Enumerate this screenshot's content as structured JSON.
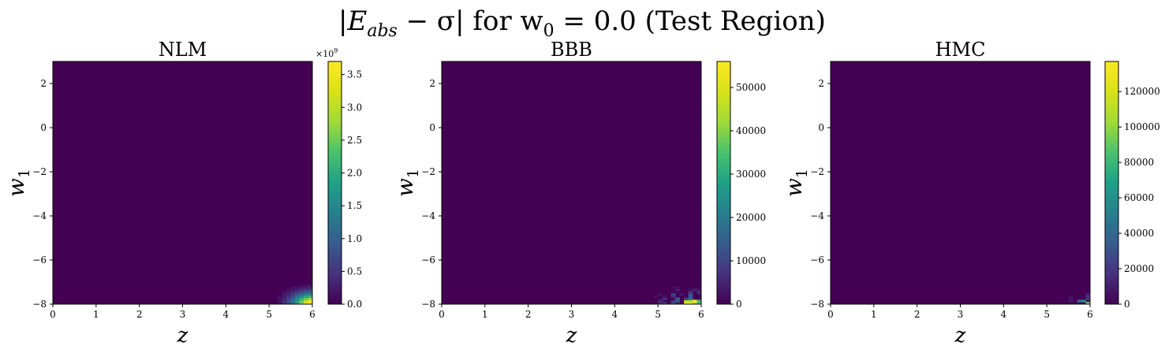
{
  "figure": {
    "title_parts": {
      "p1": "|E",
      "p1_sub": "abs",
      "p2": " − σ| for w",
      "p2_sub": "0",
      "p3": " = 0.0 (Test Region)"
    }
  },
  "colormap": "viridis",
  "chart_data": [
    {
      "type": "heatmap",
      "title": "NLM",
      "xlabel": "z",
      "ylabel_base": "w",
      "ylabel_sub": "1",
      "xlim": [
        0,
        6
      ],
      "ylim": [
        -8,
        3
      ],
      "xticks": [
        "0",
        "1",
        "2",
        "3",
        "4",
        "5",
        "6"
      ],
      "yticks": [
        "2",
        "0",
        "−2",
        "−4",
        "−6",
        "−8"
      ],
      "colorbar": {
        "min": 0,
        "max": 3.7,
        "ticks": [
          "0.0",
          "0.5",
          "1.0",
          "1.5",
          "2.0",
          "2.5",
          "3.0",
          "3.5"
        ],
        "offset_label": "×10",
        "offset_exp": "9"
      },
      "hotspot": {
        "z_from": 4.9,
        "z_to": 6.0,
        "w1_from": -8.0,
        "w1_to": -6.8,
        "peak_at": [
          6.0,
          -8.0
        ],
        "peak_value": 3.6,
        "pattern": "smooth"
      }
    },
    {
      "type": "heatmap",
      "title": "BBB",
      "xlabel": "z",
      "ylabel_base": "w",
      "ylabel_sub": "1",
      "xlim": [
        0,
        6
      ],
      "ylim": [
        -8,
        3
      ],
      "xticks": [
        "0",
        "1",
        "2",
        "3",
        "4",
        "5",
        "6"
      ],
      "yticks": [
        "2",
        "0",
        "−2",
        "−4",
        "−6",
        "−8"
      ],
      "colorbar": {
        "min": 0,
        "max": 56000,
        "ticks": [
          "0",
          "10000",
          "20000",
          "30000",
          "40000",
          "50000"
        ]
      },
      "hotspot": {
        "z_from": 4.6,
        "z_to": 6.0,
        "w1_from": -8.0,
        "w1_to": -7.0,
        "peak_at": [
          5.8,
          -7.9
        ],
        "peak_value": 55000,
        "pattern": "noisy"
      }
    },
    {
      "type": "heatmap",
      "title": "HMC",
      "xlabel": "z",
      "ylabel_base": "w",
      "ylabel_sub": "1",
      "xlim": [
        0,
        6
      ],
      "ylim": [
        -8,
        3
      ],
      "xticks": [
        "0",
        "1",
        "2",
        "3",
        "4",
        "5",
        "6"
      ],
      "yticks": [
        "2",
        "0",
        "−2",
        "−4",
        "−6",
        "−8"
      ],
      "colorbar": {
        "min": 0,
        "max": 137000,
        "ticks": [
          "0",
          "20000",
          "40000",
          "60000",
          "80000",
          "100000",
          "120000"
        ]
      },
      "hotspot": {
        "z_from": 5.2,
        "z_to": 6.0,
        "w1_from": -8.0,
        "w1_to": -7.3,
        "peak_at": [
          5.95,
          -7.95
        ],
        "peak_value": 135000,
        "pattern": "noisy"
      }
    }
  ]
}
